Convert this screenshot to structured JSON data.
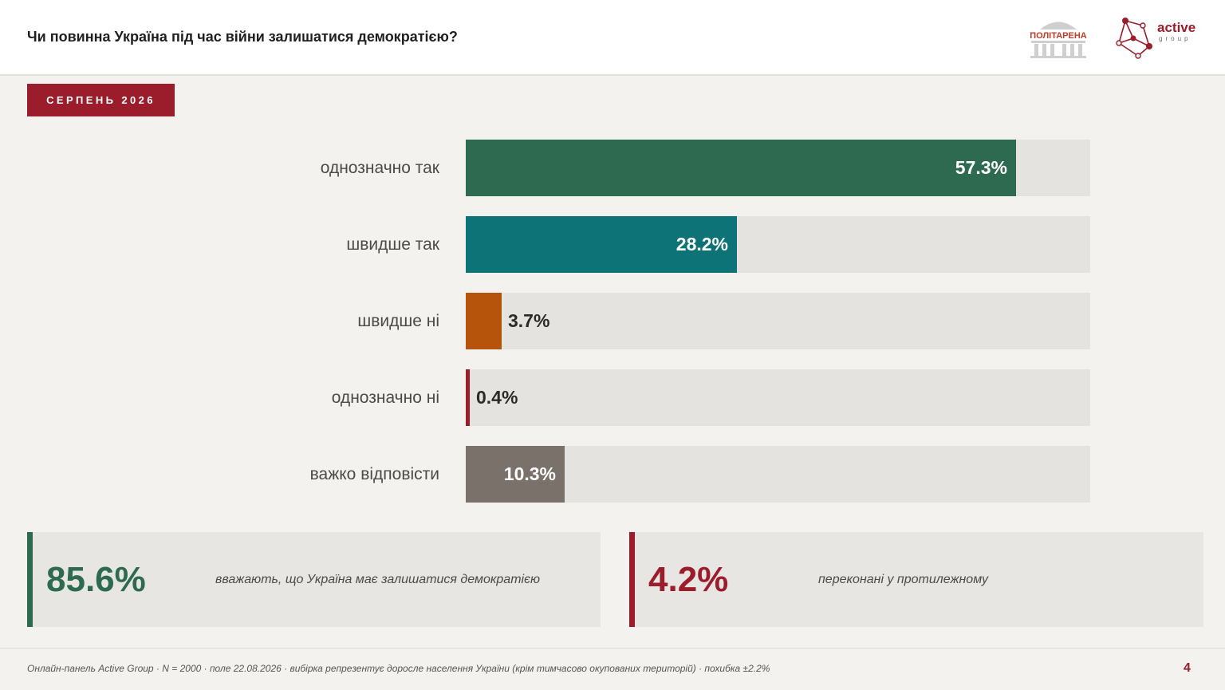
{
  "header": {
    "title": "Чи повинна Україна під час війни залишатися демократією?",
    "logos": {
      "politarena": "ПОЛІТАРЕНА",
      "active_word": "active",
      "active_sub": "group"
    }
  },
  "badge": {
    "label": "СЕРПЕНЬ 2026"
  },
  "colors": {
    "brand_red": "#9b1c2a",
    "green": "#2d6a4f",
    "teal": "#0e7377",
    "orange": "#b5540a",
    "dark_red": "#9b1c2a",
    "gray": "#7a716b",
    "track": "#e4e3e0"
  },
  "chart_data": {
    "type": "bar",
    "orientation": "horizontal",
    "categories": [
      "однозначно так",
      "швидше так",
      "швидше ні",
      "однозначно ні",
      "важко відповісти"
    ],
    "values": [
      57.3,
      28.2,
      3.7,
      0.4,
      10.3
    ],
    "value_labels": [
      "57.3%",
      "28.2%",
      "3.7%",
      "0.4%",
      "10.3%"
    ],
    "bar_colors": [
      "#2d6a4f",
      "#0e7377",
      "#b5540a",
      "#9b1c2a",
      "#7a716b"
    ],
    "xlim": [
      0,
      65
    ],
    "grid": false
  },
  "summary": {
    "left": {
      "value": "85.6%",
      "text": "вважають, що Україна має залишатися демократією"
    },
    "right": {
      "value": "4.2%",
      "text": "переконані у протилежному"
    }
  },
  "footer": {
    "note": "Онлайн-панель Active Group · N = 2000 · поле 22.08.2026 · вибірка репрезентує доросле населення України (крім тимчасово окупованих територій) · похибка ±2.2%",
    "page_number": "4"
  }
}
